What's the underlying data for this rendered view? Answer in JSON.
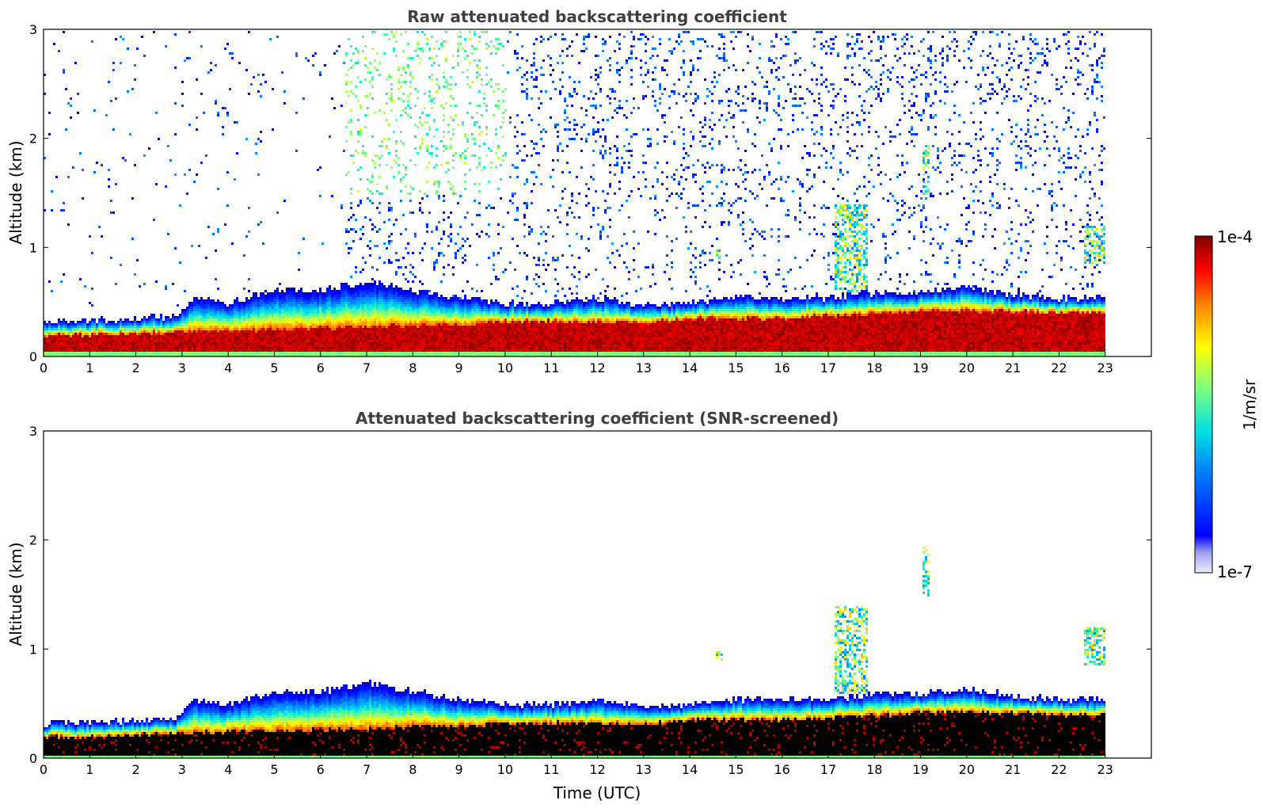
{
  "chart_data": [
    {
      "type": "heatmap",
      "title": "Raw attenuated backscattering coefficient",
      "xlabel": "",
      "ylabel": "Altitude (km)",
      "x_ticks": [
        "0",
        "1",
        "2",
        "3",
        "4",
        "5",
        "6",
        "7",
        "8",
        "9",
        "10",
        "11",
        "12",
        "13",
        "14",
        "15",
        "16",
        "17",
        "18",
        "19",
        "20",
        "21",
        "22",
        "23"
      ],
      "y_ticks": [
        "0",
        "1",
        "2",
        "3"
      ],
      "xlim": [
        0,
        24
      ],
      "ylim": [
        0,
        3
      ],
      "data_end_hour": 23.05,
      "layer_top_km": [
        [
          0,
          0.33
        ],
        [
          1,
          0.34
        ],
        [
          2,
          0.36
        ],
        [
          2.9,
          0.38
        ],
        [
          3.2,
          0.55
        ],
        [
          4,
          0.5
        ],
        [
          5,
          0.62
        ],
        [
          6,
          0.62
        ],
        [
          7,
          0.7
        ],
        [
          8,
          0.62
        ],
        [
          9,
          0.55
        ],
        [
          10,
          0.5
        ],
        [
          11,
          0.5
        ],
        [
          12,
          0.55
        ],
        [
          13,
          0.48
        ],
        [
          14,
          0.5
        ],
        [
          15,
          0.55
        ],
        [
          16,
          0.55
        ],
        [
          17,
          0.55
        ],
        [
          18,
          0.6
        ],
        [
          19,
          0.6
        ],
        [
          20,
          0.65
        ],
        [
          21,
          0.58
        ],
        [
          22,
          0.55
        ],
        [
          23,
          0.55
        ]
      ],
      "dense_top_km": [
        [
          0,
          0.2
        ],
        [
          1,
          0.21
        ],
        [
          2,
          0.22
        ],
        [
          3,
          0.24
        ],
        [
          4,
          0.25
        ],
        [
          5,
          0.26
        ],
        [
          6,
          0.27
        ],
        [
          7,
          0.28
        ],
        [
          8,
          0.3
        ],
        [
          9,
          0.3
        ],
        [
          10,
          0.33
        ],
        [
          11,
          0.33
        ],
        [
          12,
          0.33
        ],
        [
          13,
          0.32
        ],
        [
          14,
          0.36
        ],
        [
          15,
          0.36
        ],
        [
          16,
          0.36
        ],
        [
          17,
          0.38
        ],
        [
          18,
          0.4
        ],
        [
          19,
          0.43
        ],
        [
          20,
          0.43
        ],
        [
          21,
          0.42
        ],
        [
          22,
          0.41
        ],
        [
          23,
          0.41
        ]
      ],
      "features": [
        {
          "time_range": [
            17.1,
            17.85
          ],
          "altitude_km": [
            0.6,
            1.4
          ]
        },
        {
          "time_range": [
            19.0,
            19.15
          ],
          "altitude_km": [
            1.5,
            1.95
          ]
        },
        {
          "time_range": [
            22.5,
            23.0
          ],
          "altitude_km": [
            0.85,
            1.2
          ]
        },
        {
          "time_range": [
            14.55,
            14.7
          ],
          "altitude_km": [
            0.9,
            1.0
          ]
        }
      ],
      "noise": "strong"
    },
    {
      "type": "heatmap",
      "title": "Attenuated backscattering coefficient (SNR-screened)",
      "xlabel": "Time (UTC)",
      "ylabel": "Altitude (km)",
      "x_ticks": [
        "0",
        "1",
        "2",
        "3",
        "4",
        "5",
        "6",
        "7",
        "8",
        "9",
        "10",
        "11",
        "12",
        "13",
        "14",
        "15",
        "16",
        "17",
        "18",
        "19",
        "20",
        "21",
        "22",
        "23"
      ],
      "y_ticks": [
        "0",
        "1",
        "2",
        "3"
      ],
      "xlim": [
        0,
        24
      ],
      "ylim": [
        0,
        3
      ],
      "data_end_hour": 23.05,
      "noise": "screened"
    }
  ],
  "colorbar": {
    "min_label": "1e-7",
    "max_label": "1e-4",
    "label": "1/m/sr",
    "scale": "log",
    "colormap": "jet"
  }
}
